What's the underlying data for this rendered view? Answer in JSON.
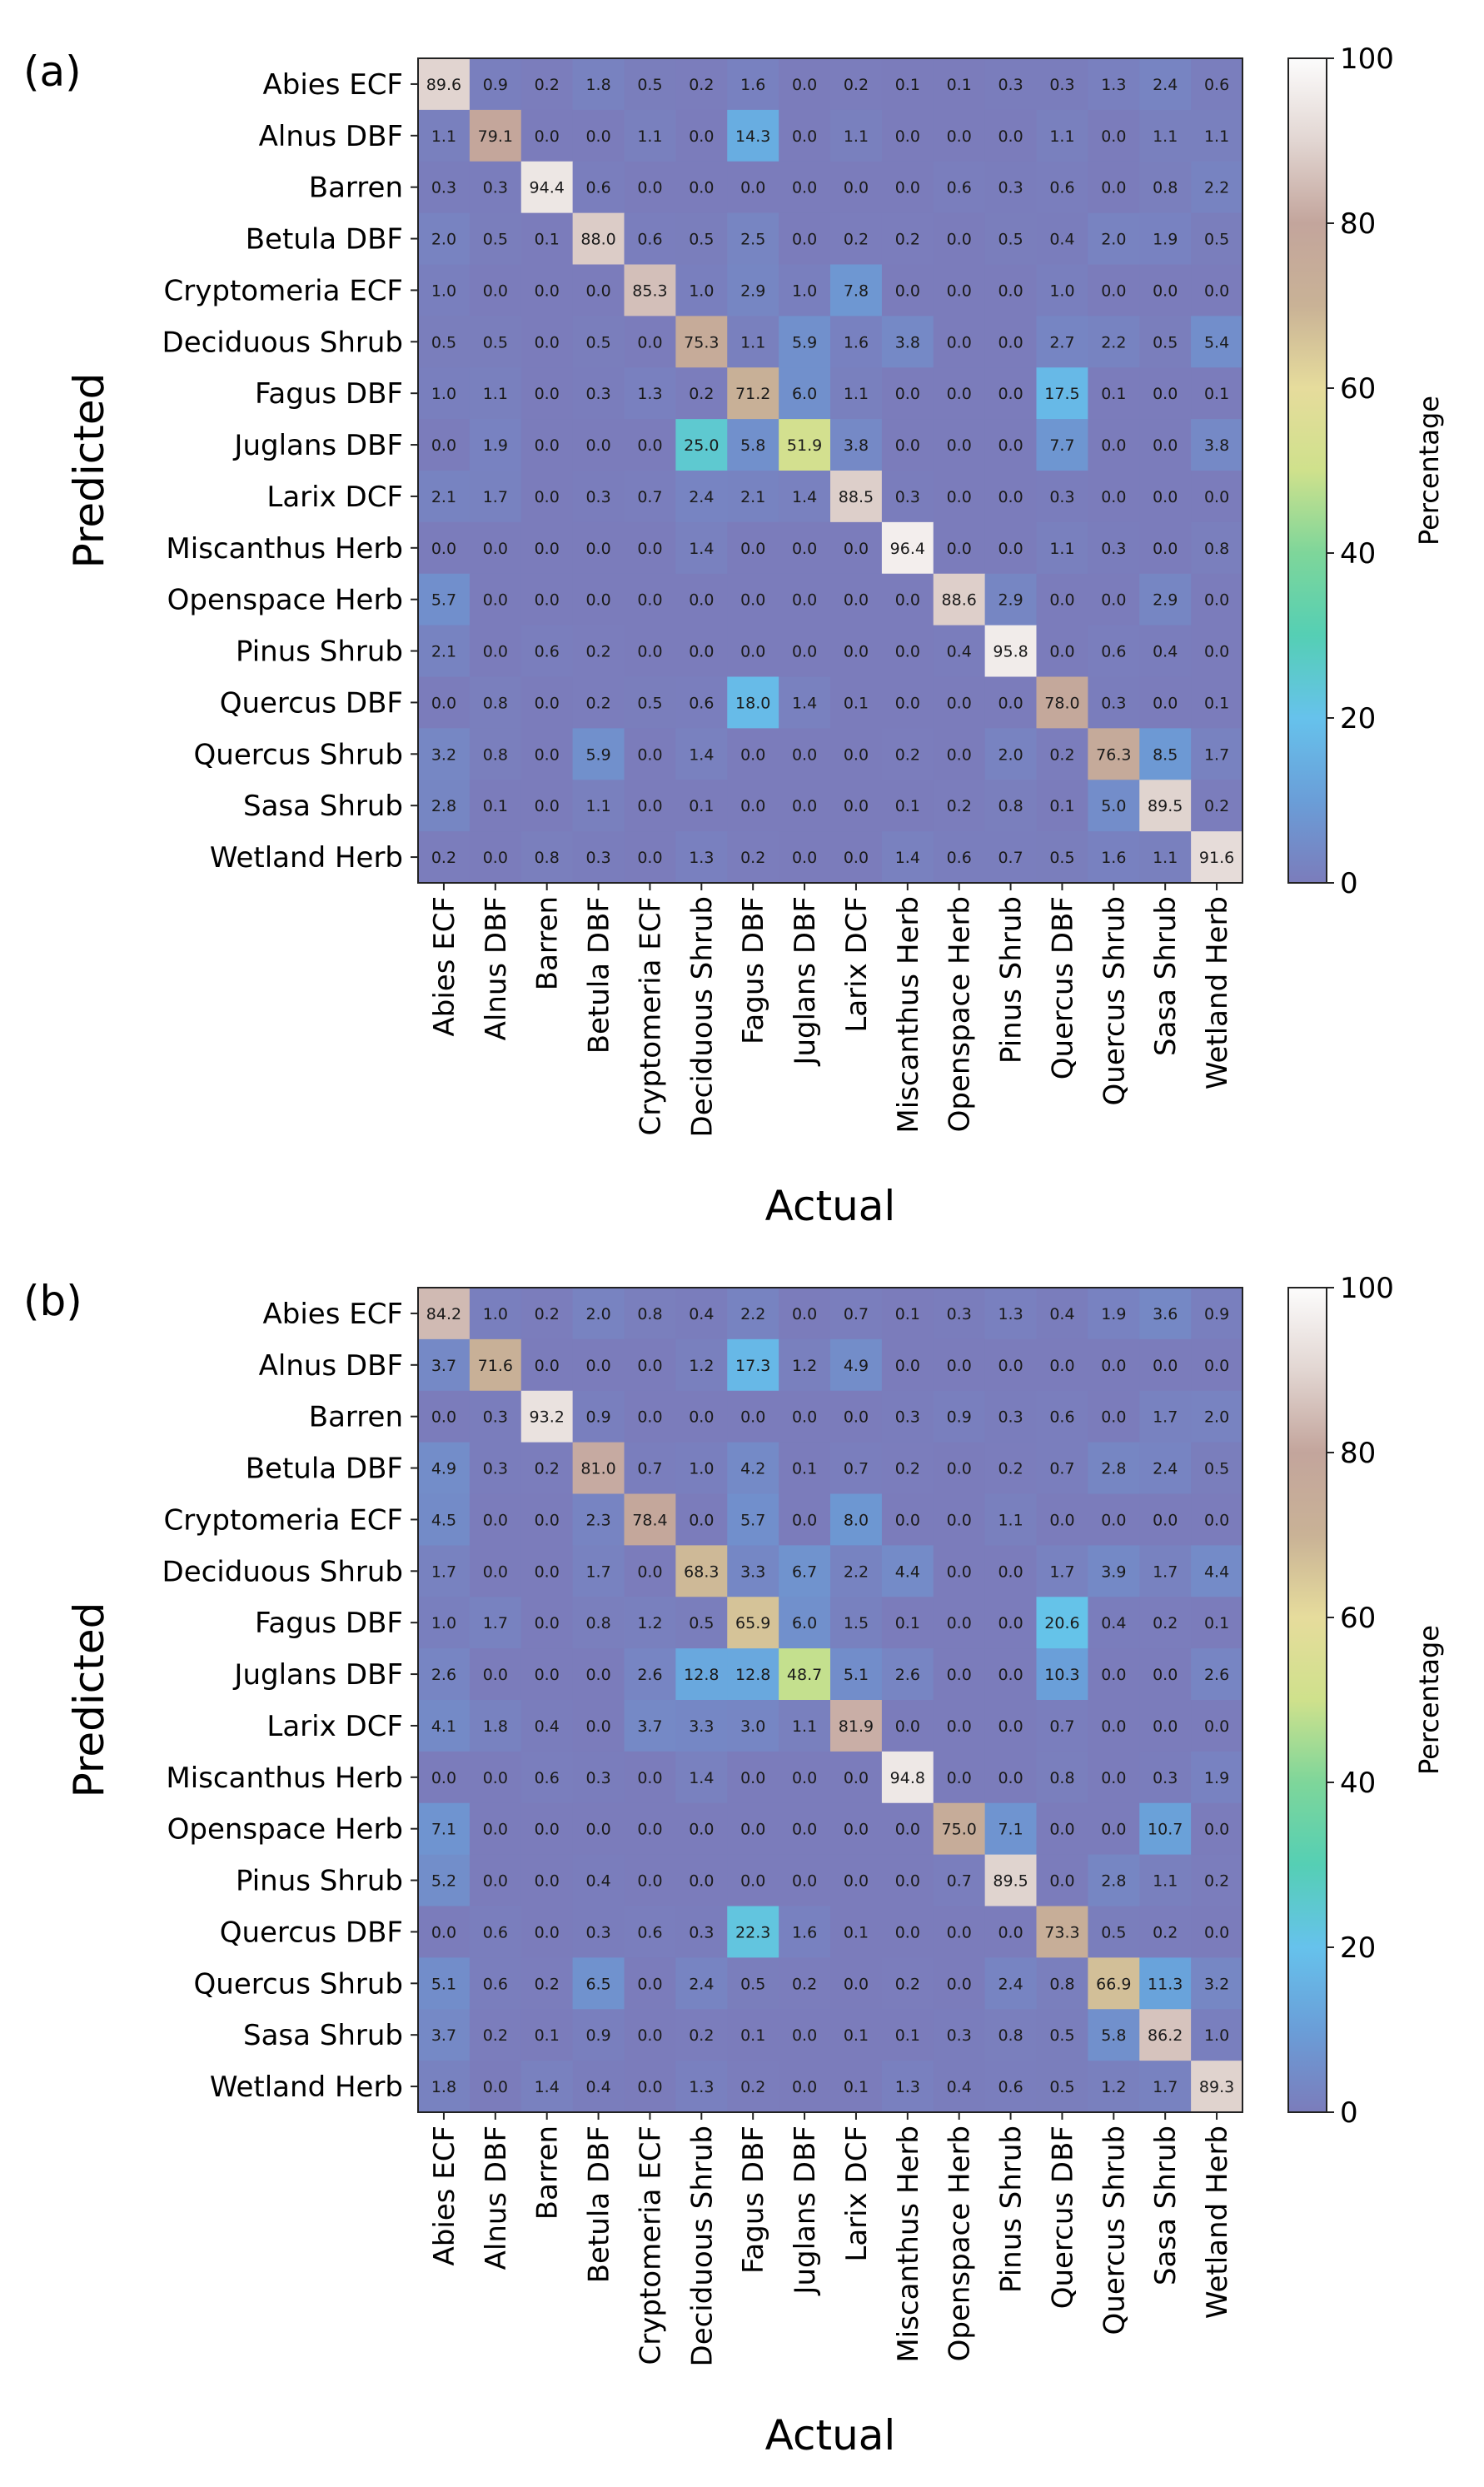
{
  "chart_data": [
    {
      "panel_label": "(a)",
      "type": "heatmap",
      "title": "",
      "xlabel": "Actual",
      "ylabel": "Predicted",
      "colorbar_label": "Percentage",
      "colorbar_ticks": [
        "0",
        "20",
        "40",
        "60",
        "80",
        "100"
      ],
      "vmin": 0,
      "vmax": 100,
      "rows": [
        "Abies ECF",
        "Alnus DBF",
        "Barren",
        "Betula DBF",
        "Cryptomeria ECF",
        "Deciduous Shrub",
        "Fagus DBF",
        "Juglans DBF",
        "Larix DCF",
        "Miscanthus Herb",
        "Openspace Herb",
        "Pinus Shrub",
        "Quercus DBF",
        "Quercus Shrub",
        "Sasa Shrub",
        "Wetland Herb"
      ],
      "columns": [
        "Abies ECF",
        "Alnus DBF",
        "Barren",
        "Betula DBF",
        "Cryptomeria ECF",
        "Deciduous Shrub",
        "Fagus DBF",
        "Juglans DBF",
        "Larix DCF",
        "Miscanthus Herb",
        "Openspace Herb",
        "Pinus Shrub",
        "Quercus DBF",
        "Quercus Shrub",
        "Sasa Shrub",
        "Wetland Herb"
      ],
      "values": [
        [
          "89.6",
          "0.9",
          "0.2",
          "1.8",
          "0.5",
          "0.2",
          "1.6",
          "0.0",
          "0.2",
          "0.1",
          "0.1",
          "0.3",
          "0.3",
          "1.3",
          "2.4",
          "0.6"
        ],
        [
          "1.1",
          "79.1",
          "0.0",
          "0.0",
          "1.1",
          "0.0",
          "14.3",
          "0.0",
          "1.1",
          "0.0",
          "0.0",
          "0.0",
          "1.1",
          "0.0",
          "1.1",
          "1.1"
        ],
        [
          "0.3",
          "0.3",
          "94.4",
          "0.6",
          "0.0",
          "0.0",
          "0.0",
          "0.0",
          "0.0",
          "0.0",
          "0.6",
          "0.3",
          "0.6",
          "0.0",
          "0.8",
          "2.2"
        ],
        [
          "2.0",
          "0.5",
          "0.1",
          "88.0",
          "0.6",
          "0.5",
          "2.5",
          "0.0",
          "0.2",
          "0.2",
          "0.0",
          "0.5",
          "0.4",
          "2.0",
          "1.9",
          "0.5"
        ],
        [
          "1.0",
          "0.0",
          "0.0",
          "0.0",
          "85.3",
          "1.0",
          "2.9",
          "1.0",
          "7.8",
          "0.0",
          "0.0",
          "0.0",
          "1.0",
          "0.0",
          "0.0",
          "0.0"
        ],
        [
          "0.5",
          "0.5",
          "0.0",
          "0.5",
          "0.0",
          "75.3",
          "1.1",
          "5.9",
          "1.6",
          "3.8",
          "0.0",
          "0.0",
          "2.7",
          "2.2",
          "0.5",
          "5.4"
        ],
        [
          "1.0",
          "1.1",
          "0.0",
          "0.3",
          "1.3",
          "0.2",
          "71.2",
          "6.0",
          "1.1",
          "0.0",
          "0.0",
          "0.0",
          "17.5",
          "0.1",
          "0.0",
          "0.1"
        ],
        [
          "0.0",
          "1.9",
          "0.0",
          "0.0",
          "0.0",
          "25.0",
          "5.8",
          "51.9",
          "3.8",
          "0.0",
          "0.0",
          "0.0",
          "7.7",
          "0.0",
          "0.0",
          "3.8"
        ],
        [
          "2.1",
          "1.7",
          "0.0",
          "0.3",
          "0.7",
          "2.4",
          "2.1",
          "1.4",
          "88.5",
          "0.3",
          "0.0",
          "0.0",
          "0.3",
          "0.0",
          "0.0",
          "0.0"
        ],
        [
          "0.0",
          "0.0",
          "0.0",
          "0.0",
          "0.0",
          "1.4",
          "0.0",
          "0.0",
          "0.0",
          "96.4",
          "0.0",
          "0.0",
          "1.1",
          "0.3",
          "0.0",
          "0.8"
        ],
        [
          "5.7",
          "0.0",
          "0.0",
          "0.0",
          "0.0",
          "0.0",
          "0.0",
          "0.0",
          "0.0",
          "0.0",
          "88.6",
          "2.9",
          "0.0",
          "0.0",
          "2.9",
          "0.0"
        ],
        [
          "2.1",
          "0.0",
          "0.6",
          "0.2",
          "0.0",
          "0.0",
          "0.0",
          "0.0",
          "0.0",
          "0.0",
          "0.4",
          "95.8",
          "0.0",
          "0.6",
          "0.4",
          "0.0"
        ],
        [
          "0.0",
          "0.8",
          "0.0",
          "0.2",
          "0.5",
          "0.6",
          "18.0",
          "1.4",
          "0.1",
          "0.0",
          "0.0",
          "0.0",
          "78.0",
          "0.3",
          "0.0",
          "0.1"
        ],
        [
          "3.2",
          "0.8",
          "0.0",
          "5.9",
          "0.0",
          "1.4",
          "0.0",
          "0.0",
          "0.0",
          "0.2",
          "0.0",
          "2.0",
          "0.2",
          "76.3",
          "8.5",
          "1.7"
        ],
        [
          "2.8",
          "0.1",
          "0.0",
          "1.1",
          "0.0",
          "0.1",
          "0.0",
          "0.0",
          "0.0",
          "0.1",
          "0.2",
          "0.8",
          "0.1",
          "5.0",
          "89.5",
          "0.2"
        ],
        [
          "0.2",
          "0.0",
          "0.8",
          "0.3",
          "0.0",
          "1.3",
          "0.2",
          "0.0",
          "0.0",
          "1.4",
          "0.6",
          "0.7",
          "0.5",
          "1.6",
          "1.1",
          "91.6"
        ]
      ]
    },
    {
      "panel_label": "(b)",
      "type": "heatmap",
      "title": "",
      "xlabel": "Actual",
      "ylabel": "Predicted",
      "colorbar_label": "Percentage",
      "colorbar_ticks": [
        "0",
        "20",
        "40",
        "60",
        "80",
        "100"
      ],
      "vmin": 0,
      "vmax": 100,
      "rows": [
        "Abies ECF",
        "Alnus DBF",
        "Barren",
        "Betula DBF",
        "Cryptomeria ECF",
        "Deciduous Shrub",
        "Fagus DBF",
        "Juglans DBF",
        "Larix DCF",
        "Miscanthus Herb",
        "Openspace Herb",
        "Pinus Shrub",
        "Quercus DBF",
        "Quercus Shrub",
        "Sasa Shrub",
        "Wetland Herb"
      ],
      "columns": [
        "Abies ECF",
        "Alnus DBF",
        "Barren",
        "Betula DBF",
        "Cryptomeria ECF",
        "Deciduous Shrub",
        "Fagus DBF",
        "Juglans DBF",
        "Larix DCF",
        "Miscanthus Herb",
        "Openspace Herb",
        "Pinus Shrub",
        "Quercus DBF",
        "Quercus Shrub",
        "Sasa Shrub",
        "Wetland Herb"
      ],
      "values": [
        [
          "84.2",
          "1.0",
          "0.2",
          "2.0",
          "0.8",
          "0.4",
          "2.2",
          "0.0",
          "0.7",
          "0.1",
          "0.3",
          "1.3",
          "0.4",
          "1.9",
          "3.6",
          "0.9"
        ],
        [
          "3.7",
          "71.6",
          "0.0",
          "0.0",
          "0.0",
          "1.2",
          "17.3",
          "1.2",
          "4.9",
          "0.0",
          "0.0",
          "0.0",
          "0.0",
          "0.0",
          "0.0",
          "0.0"
        ],
        [
          "0.0",
          "0.3",
          "93.2",
          "0.9",
          "0.0",
          "0.0",
          "0.0",
          "0.0",
          "0.0",
          "0.3",
          "0.9",
          "0.3",
          "0.6",
          "0.0",
          "1.7",
          "2.0"
        ],
        [
          "4.9",
          "0.3",
          "0.2",
          "81.0",
          "0.7",
          "1.0",
          "4.2",
          "0.1",
          "0.7",
          "0.2",
          "0.0",
          "0.2",
          "0.7",
          "2.8",
          "2.4",
          "0.5"
        ],
        [
          "4.5",
          "0.0",
          "0.0",
          "2.3",
          "78.4",
          "0.0",
          "5.7",
          "0.0",
          "8.0",
          "0.0",
          "0.0",
          "1.1",
          "0.0",
          "0.0",
          "0.0",
          "0.0"
        ],
        [
          "1.7",
          "0.0",
          "0.0",
          "1.7",
          "0.0",
          "68.3",
          "3.3",
          "6.7",
          "2.2",
          "4.4",
          "0.0",
          "0.0",
          "1.7",
          "3.9",
          "1.7",
          "4.4"
        ],
        [
          "1.0",
          "1.7",
          "0.0",
          "0.8",
          "1.2",
          "0.5",
          "65.9",
          "6.0",
          "1.5",
          "0.1",
          "0.0",
          "0.0",
          "20.6",
          "0.4",
          "0.2",
          "0.1"
        ],
        [
          "2.6",
          "0.0",
          "0.0",
          "0.0",
          "2.6",
          "12.8",
          "12.8",
          "48.7",
          "5.1",
          "2.6",
          "0.0",
          "0.0",
          "10.3",
          "0.0",
          "0.0",
          "2.6"
        ],
        [
          "4.1",
          "1.8",
          "0.4",
          "0.0",
          "3.7",
          "3.3",
          "3.0",
          "1.1",
          "81.9",
          "0.0",
          "0.0",
          "0.0",
          "0.7",
          "0.0",
          "0.0",
          "0.0"
        ],
        [
          "0.0",
          "0.0",
          "0.6",
          "0.3",
          "0.0",
          "1.4",
          "0.0",
          "0.0",
          "0.0",
          "94.8",
          "0.0",
          "0.0",
          "0.8",
          "0.0",
          "0.3",
          "1.9"
        ],
        [
          "7.1",
          "0.0",
          "0.0",
          "0.0",
          "0.0",
          "0.0",
          "0.0",
          "0.0",
          "0.0",
          "0.0",
          "75.0",
          "7.1",
          "0.0",
          "0.0",
          "10.7",
          "0.0"
        ],
        [
          "5.2",
          "0.0",
          "0.0",
          "0.4",
          "0.0",
          "0.0",
          "0.0",
          "0.0",
          "0.0",
          "0.0",
          "0.7",
          "89.5",
          "0.0",
          "2.8",
          "1.1",
          "0.2"
        ],
        [
          "0.0",
          "0.6",
          "0.0",
          "0.3",
          "0.6",
          "0.3",
          "22.3",
          "1.6",
          "0.1",
          "0.0",
          "0.0",
          "0.0",
          "73.3",
          "0.5",
          "0.2",
          "0.0"
        ],
        [
          "5.1",
          "0.6",
          "0.2",
          "6.5",
          "0.0",
          "2.4",
          "0.5",
          "0.2",
          "0.0",
          "0.2",
          "0.0",
          "2.4",
          "0.8",
          "66.9",
          "11.3",
          "3.2"
        ],
        [
          "3.7",
          "0.2",
          "0.1",
          "0.9",
          "0.0",
          "0.2",
          "0.1",
          "0.0",
          "0.1",
          "0.1",
          "0.3",
          "0.8",
          "0.5",
          "5.8",
          "86.2",
          "1.0"
        ],
        [
          "1.8",
          "0.0",
          "1.4",
          "0.4",
          "0.0",
          "1.3",
          "0.2",
          "0.0",
          "0.1",
          "1.3",
          "0.4",
          "0.6",
          "0.5",
          "1.2",
          "1.7",
          "89.3"
        ]
      ]
    }
  ]
}
